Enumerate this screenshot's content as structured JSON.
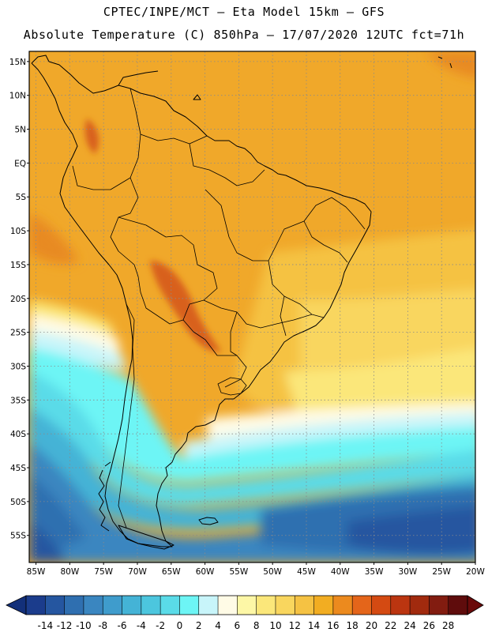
{
  "header": {
    "line1": "CPTEC/INPE/MCT –  Eta Model 15km – GFS",
    "line2": "Absolute Temperature (C) 850hPa – 17/07/2020 12UTC fct=71h"
  },
  "axes": {
    "lat_labels": [
      "15N",
      "10N",
      "5N",
      "EQ",
      "5S",
      "10S",
      "15S",
      "20S",
      "25S",
      "30S",
      "35S",
      "40S",
      "45S",
      "50S",
      "55S"
    ],
    "lat_values": [
      15,
      10,
      5,
      0,
      -5,
      -10,
      -15,
      -20,
      -25,
      -30,
      -35,
      -40,
      -45,
      -50,
      -55
    ],
    "lon_labels": [
      "85W",
      "80W",
      "75W",
      "70W",
      "65W",
      "60W",
      "55W",
      "50W",
      "45W",
      "40W",
      "35W",
      "30W",
      "25W",
      "20W"
    ],
    "lon_values": [
      -85,
      -80,
      -75,
      -70,
      -65,
      -60,
      -55,
      -50,
      -45,
      -40,
      -35,
      -30,
      -25,
      -20
    ],
    "lon_range": [
      -86,
      -20
    ],
    "lat_range": [
      -59,
      16.5
    ]
  },
  "colorbar": {
    "labels": [
      "-14",
      "-12",
      "-10",
      "-8",
      "-6",
      "-4",
      "-2",
      "0",
      "2",
      "4",
      "6",
      "8",
      "10",
      "12",
      "14",
      "16",
      "18",
      "20",
      "22",
      "24",
      "26",
      "28"
    ],
    "colors": [
      "#1b3c8c",
      "#2556a0",
      "#2f6fb0",
      "#3a86c0",
      "#3f9ccc",
      "#44b3d6",
      "#4cc6de",
      "#5adbe8",
      "#6df5f5",
      "#c8f5fa",
      "#fffbe6",
      "#fdf7a6",
      "#fbe77a",
      "#f9d65e",
      "#f5c243",
      "#f2ad22",
      "#ec8a1e",
      "#e4651a",
      "#d44a12",
      "#bb3510",
      "#a12a0e",
      "#821c10",
      "#5f0c0c"
    ],
    "under_color": "#13307a",
    "over_color": "#6a0a0a"
  },
  "map_colors": {
    "tropical_warm": "#f0a82a",
    "tropical_hot": "#e88a22",
    "hot_core": "#d8601a",
    "subtropical": "#f5c243",
    "mild": "#f9d65e",
    "pale": "#fbe77a",
    "cream": "#fffbe6",
    "freezing": "#c8f5fa",
    "cold_cyan": "#6df5f5",
    "cold_light": "#5adbe8",
    "cold_mid": "#44b3d6",
    "cold_blue": "#3a86c0",
    "cold_deep": "#2f6fb0",
    "cold_darkest": "#2556a0",
    "coastline": "#000000",
    "grid": "#8a8a8a"
  }
}
